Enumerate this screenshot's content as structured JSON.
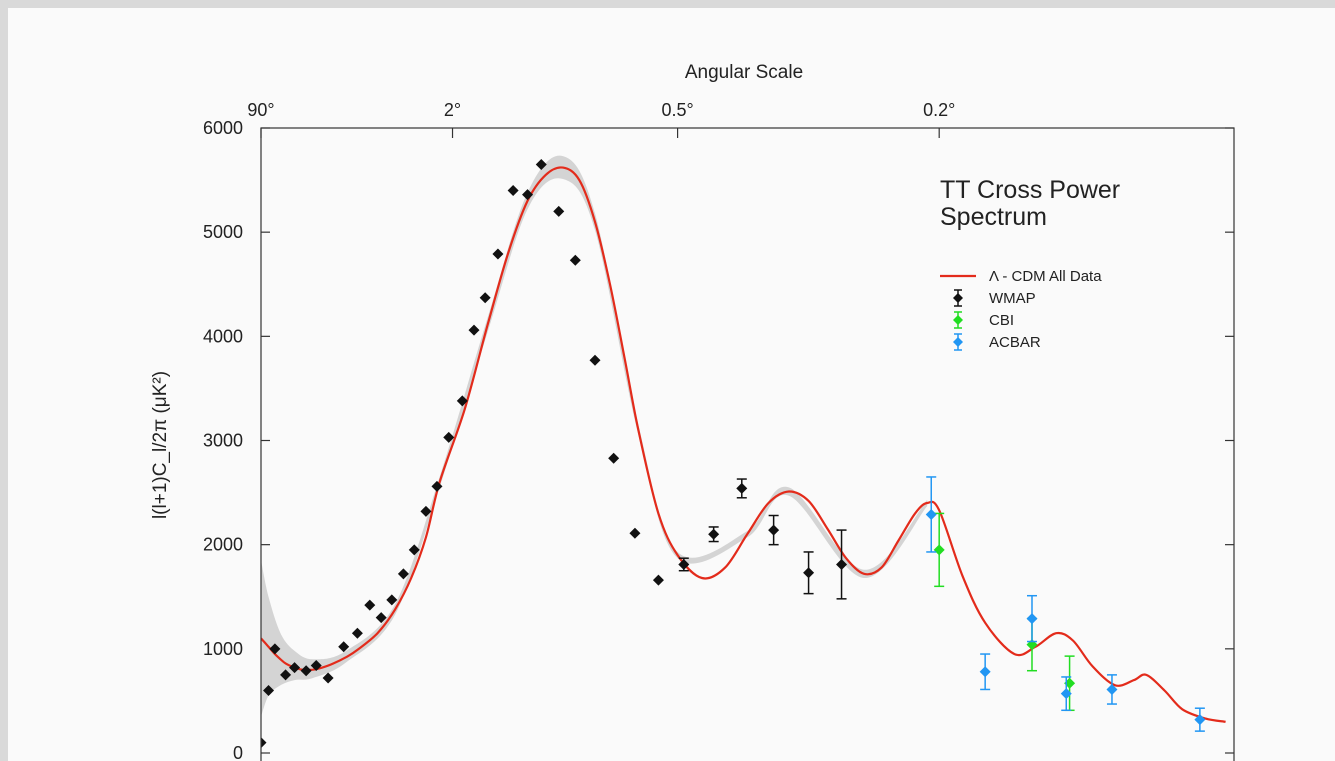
{
  "chart_data": {
    "type": "scatter",
    "title": "TT Cross Power Spectrum",
    "ylabel": "l(l+1)C_l/2π (μK²)",
    "x2label": "Angular Scale",
    "ylim": [
      0,
      6000
    ],
    "yticks": [
      0,
      1000,
      2000,
      3000,
      4000,
      5000,
      6000
    ],
    "angular_ticks": [
      {
        "label": "90°",
        "multipole": 2
      },
      {
        "label": "2°",
        "multipole": 90
      },
      {
        "label": "0.5°",
        "multipole": 360
      },
      {
        "label": "0.2°",
        "multipole": 900
      }
    ],
    "legend": {
      "position": "top-right",
      "entries": [
        {
          "name": "Λ - CDM All Data",
          "color": "#e32b1b",
          "kind": "line"
        },
        {
          "name": "WMAP",
          "color": "#111111",
          "kind": "point"
        },
        {
          "name": "CBI",
          "color": "#22dd22",
          "kind": "point"
        },
        {
          "name": "ACBAR",
          "color": "#2196f3",
          "kind": "point"
        }
      ]
    },
    "model_curve": {
      "name": "Λ - CDM All Data",
      "color": "#e32b1b",
      "points": [
        [
          2,
          1100
        ],
        [
          3,
          1020
        ],
        [
          4,
          950
        ],
        [
          5,
          900
        ],
        [
          6,
          860
        ],
        [
          8,
          820
        ],
        [
          10,
          800
        ],
        [
          13,
          800
        ],
        [
          16,
          820
        ],
        [
          20,
          860
        ],
        [
          25,
          920
        ],
        [
          30,
          990
        ],
        [
          40,
          1150
        ],
        [
          50,
          1380
        ],
        [
          60,
          1680
        ],
        [
          70,
          2070
        ],
        [
          80,
          2600
        ],
        [
          100,
          3300
        ],
        [
          120,
          4100
        ],
        [
          140,
          4800
        ],
        [
          160,
          5300
        ],
        [
          180,
          5550
        ],
        [
          200,
          5620
        ],
        [
          220,
          5500
        ],
        [
          240,
          5100
        ],
        [
          260,
          4500
        ],
        [
          280,
          3800
        ],
        [
          300,
          3100
        ],
        [
          330,
          2300
        ],
        [
          360,
          1900
        ],
        [
          400,
          1680
        ],
        [
          440,
          1780
        ],
        [
          480,
          2100
        ],
        [
          520,
          2400
        ],
        [
          560,
          2510
        ],
        [
          600,
          2420
        ],
        [
          640,
          2150
        ],
        [
          680,
          1870
        ],
        [
          720,
          1720
        ],
        [
          760,
          1780
        ],
        [
          800,
          2040
        ],
        [
          840,
          2300
        ],
        [
          870,
          2400
        ],
        [
          900,
          2330
        ],
        [
          960,
          1700
        ],
        [
          1020,
          1250
        ],
        [
          1100,
          950
        ],
        [
          1160,
          1020
        ],
        [
          1220,
          1150
        ],
        [
          1270,
          1080
        ],
        [
          1330,
          830
        ],
        [
          1400,
          650
        ],
        [
          1460,
          700
        ],
        [
          1500,
          750
        ],
        [
          1560,
          600
        ],
        [
          1620,
          420
        ],
        [
          1700,
          330
        ],
        [
          1770,
          300
        ]
      ]
    },
    "model_band": {
      "color": "#d4d4d4",
      "upper": [
        [
          2,
          1850
        ],
        [
          3,
          1500
        ],
        [
          5,
          1150
        ],
        [
          8,
          980
        ],
        [
          13,
          900
        ],
        [
          25,
          980
        ],
        [
          50,
          1430
        ],
        [
          80,
          2650
        ],
        [
          120,
          4170
        ],
        [
          160,
          5380
        ],
        [
          200,
          5730
        ],
        [
          240,
          5180
        ],
        [
          300,
          3150
        ],
        [
          360,
          1930
        ],
        [
          480,
          2130
        ],
        [
          560,
          2550
        ],
        [
          720,
          1760
        ],
        [
          870,
          2430
        ]
      ],
      "lower": [
        [
          2,
          350
        ],
        [
          3,
          550
        ],
        [
          5,
          650
        ],
        [
          8,
          700
        ],
        [
          13,
          720
        ],
        [
          25,
          870
        ],
        [
          50,
          1330
        ],
        [
          80,
          2550
        ],
        [
          120,
          4030
        ],
        [
          160,
          5220
        ],
        [
          200,
          5510
        ],
        [
          240,
          5020
        ],
        [
          300,
          3050
        ],
        [
          360,
          1870
        ],
        [
          480,
          2070
        ],
        [
          560,
          2470
        ],
        [
          720,
          1680
        ],
        [
          870,
          2370
        ]
      ]
    },
    "series": [
      {
        "name": "WMAP",
        "color": "#111111",
        "points": [
          {
            "x": 2,
            "y": 100
          },
          {
            "x": 3,
            "y": 600
          },
          {
            "x": 4,
            "y": 1000
          },
          {
            "x": 6,
            "y": 750
          },
          {
            "x": 8,
            "y": 820
          },
          {
            "x": 11,
            "y": 790
          },
          {
            "x": 14,
            "y": 840
          },
          {
            "x": 18,
            "y": 720
          },
          {
            "x": 24,
            "y": 1020
          },
          {
            "x": 30,
            "y": 1150
          },
          {
            "x": 36,
            "y": 1420
          },
          {
            "x": 42,
            "y": 1300
          },
          {
            "x": 48,
            "y": 1470
          },
          {
            "x": 55,
            "y": 1720
          },
          {
            "x": 62,
            "y": 1950
          },
          {
            "x": 70,
            "y": 2320
          },
          {
            "x": 78,
            "y": 2560
          },
          {
            "x": 87,
            "y": 3030
          },
          {
            "x": 98,
            "y": 3380
          },
          {
            "x": 108,
            "y": 4060
          },
          {
            "x": 118,
            "y": 4370
          },
          {
            "x": 130,
            "y": 4790
          },
          {
            "x": 145,
            "y": 5400
          },
          {
            "x": 160,
            "y": 5360
          },
          {
            "x": 175,
            "y": 5650
          },
          {
            "x": 195,
            "y": 5200
          },
          {
            "x": 215,
            "y": 4730
          },
          {
            "x": 240,
            "y": 3770
          },
          {
            "x": 265,
            "y": 2830
          },
          {
            "x": 295,
            "y": 2110
          },
          {
            "x": 330,
            "y": 1660
          },
          {
            "x": 370,
            "y": 1810,
            "err": 60
          },
          {
            "x": 420,
            "y": 2100,
            "err": 70
          },
          {
            "x": 470,
            "y": 2540,
            "err": 90
          },
          {
            "x": 530,
            "y": 2140,
            "err": 140
          },
          {
            "x": 600,
            "y": 1730,
            "err": 200
          },
          {
            "x": 670,
            "y": 1810,
            "err": 330
          }
        ]
      },
      {
        "name": "CBI",
        "color": "#22dd22",
        "points": [
          {
            "x": 900,
            "y": 1950,
            "err": 350
          },
          {
            "x": 1150,
            "y": 1040,
            "err": 250
          },
          {
            "x": 1260,
            "y": 670,
            "err": 260
          }
        ]
      },
      {
        "name": "ACBAR",
        "color": "#2196f3",
        "points": [
          {
            "x": 880,
            "y": 2290,
            "err": 360
          },
          {
            "x": 1020,
            "y": 780,
            "err": 170
          },
          {
            "x": 1150,
            "y": 1290,
            "err": 220
          },
          {
            "x": 1250,
            "y": 570,
            "err": 160
          },
          {
            "x": 1390,
            "y": 610,
            "err": 140
          },
          {
            "x": 1680,
            "y": 320,
            "err": 110
          }
        ]
      }
    ]
  }
}
